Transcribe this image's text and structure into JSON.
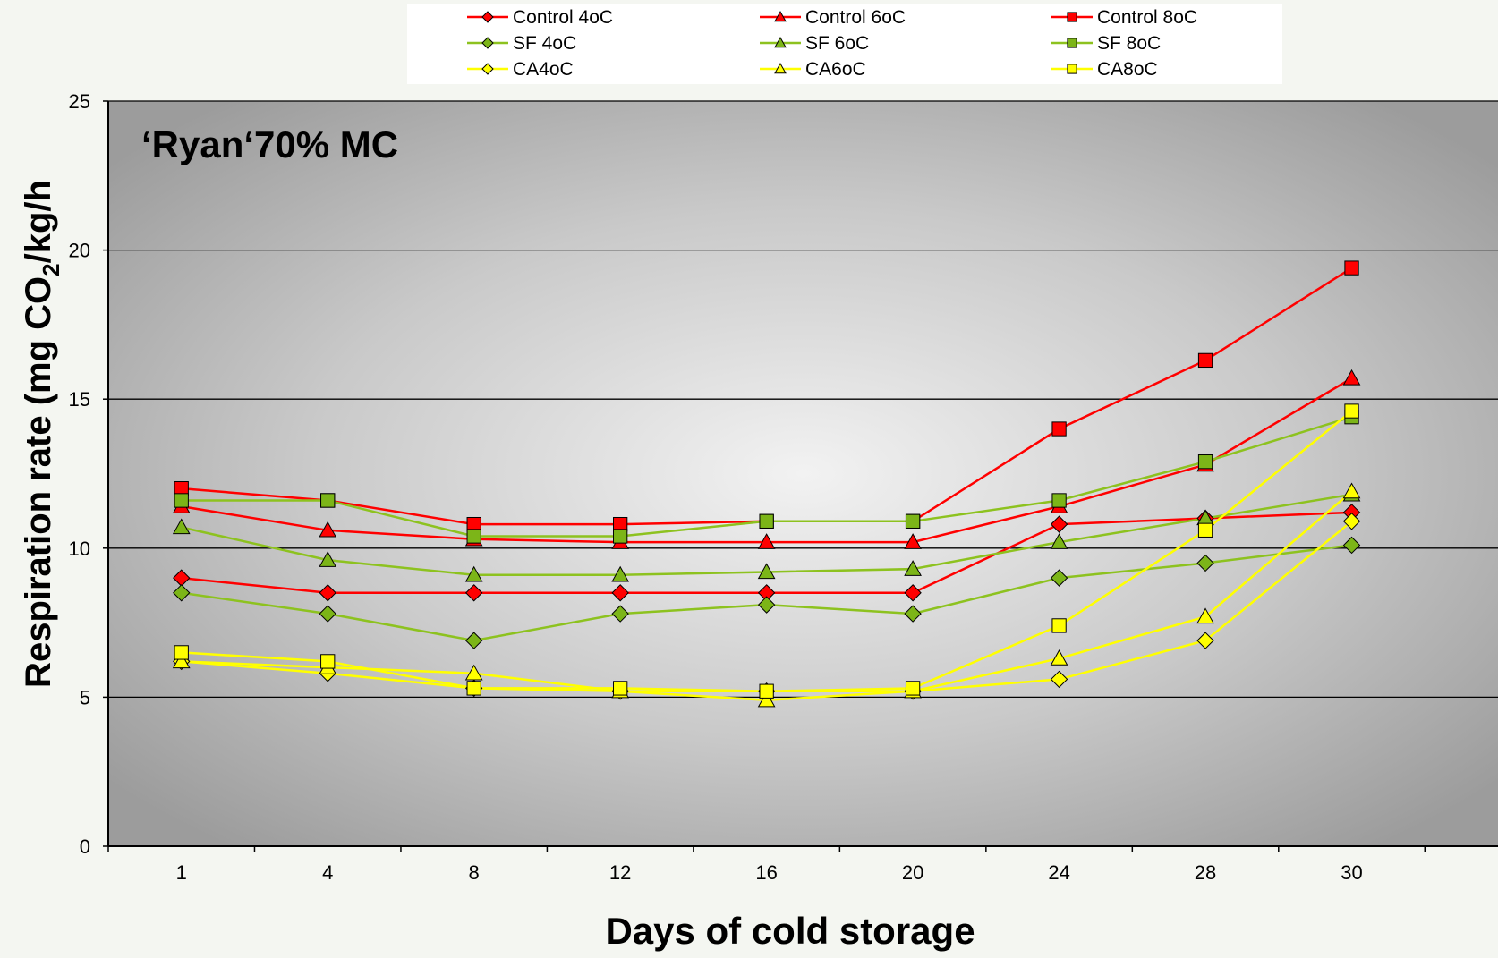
{
  "chart_data": {
    "type": "line",
    "annotation": "‘Ryan‘70%  MC",
    "xlabel": "Days of cold storage",
    "ylabel_main": "Respiration rate (mg CO",
    "ylabel_sub": "2",
    "ylabel_end": "/kg/h",
    "categories": [
      "1",
      "4",
      "8",
      "12",
      "16",
      "20",
      "24",
      "28",
      "30"
    ],
    "ylim": [
      0,
      25
    ],
    "yticks": [
      "0",
      "5",
      "10",
      "15",
      "20",
      "25"
    ],
    "grid": "horizontal",
    "legend_position": "top",
    "series": [
      {
        "name": "Control 4oC",
        "color": "#ff0000",
        "fill": "#ff0000",
        "marker": "diamond",
        "values": [
          9.0,
          8.5,
          8.5,
          8.5,
          8.5,
          8.5,
          10.8,
          11.0,
          11.2
        ]
      },
      {
        "name": "Control 6oC",
        "color": "#ff0000",
        "fill": "#ff0000",
        "marker": "triangle",
        "values": [
          11.4,
          10.6,
          10.3,
          10.2,
          10.2,
          10.2,
          11.4,
          12.8,
          15.7
        ]
      },
      {
        "name": "Control 8oC",
        "color": "#ff0000",
        "fill": "#ff0000",
        "marker": "square",
        "values": [
          12.0,
          11.6,
          10.8,
          10.8,
          10.9,
          10.9,
          14.0,
          16.3,
          19.4
        ]
      },
      {
        "name": "SF 4oC",
        "color": "#8dc21f",
        "fill": "#7cb518",
        "marker": "diamond",
        "values": [
          8.5,
          7.8,
          6.9,
          7.8,
          8.1,
          7.8,
          9.0,
          9.5,
          10.1
        ]
      },
      {
        "name": "SF 6oC",
        "color": "#8dc21f",
        "fill": "#7cb518",
        "marker": "triangle",
        "values": [
          10.7,
          9.6,
          9.1,
          9.1,
          9.2,
          9.3,
          10.2,
          11.0,
          11.8
        ]
      },
      {
        "name": "SF 8oC",
        "color": "#8dc21f",
        "fill": "#7cb518",
        "marker": "square",
        "values": [
          11.6,
          11.6,
          10.4,
          10.4,
          10.9,
          10.9,
          11.6,
          12.9,
          14.4
        ]
      },
      {
        "name": "CA4oC",
        "color": "#ffff00",
        "fill": "#ffff00",
        "marker": "diamond",
        "values": [
          6.2,
          5.8,
          5.3,
          5.2,
          5.2,
          5.2,
          5.6,
          6.9,
          10.9
        ]
      },
      {
        "name": "CA6oC",
        "color": "#ffff00",
        "fill": "#ffff00",
        "marker": "triangle",
        "values": [
          6.2,
          6.0,
          5.8,
          5.2,
          4.9,
          5.2,
          6.3,
          7.7,
          11.9
        ]
      },
      {
        "name": "CA8oC",
        "color": "#ffff00",
        "fill": "#ffff00",
        "marker": "square",
        "values": [
          6.5,
          6.2,
          5.3,
          5.3,
          5.2,
          5.3,
          7.4,
          10.6,
          14.6
        ]
      }
    ]
  }
}
